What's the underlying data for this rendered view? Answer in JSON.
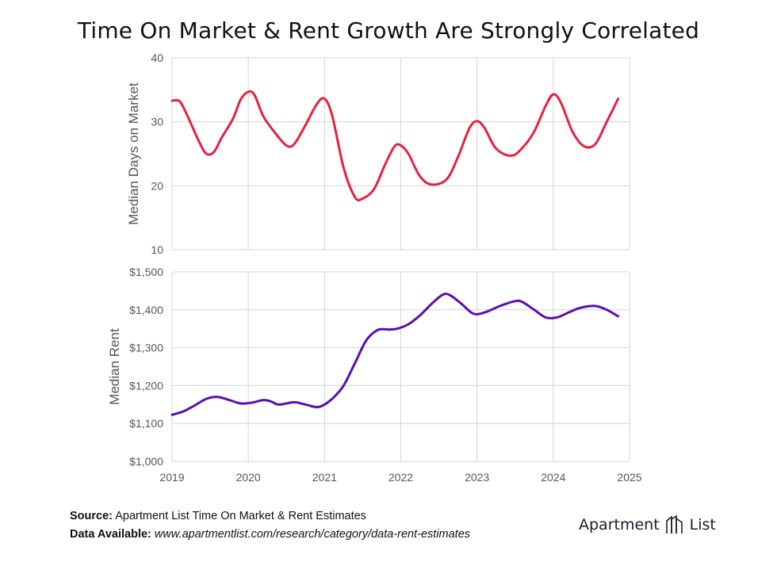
{
  "title": "Time On Market & Rent Growth Are Strongly Correlated",
  "chart_data": [
    {
      "type": "line",
      "name": "dom",
      "ylabel": "Median Days on Market",
      "ylim": [
        10,
        40
      ],
      "yticks": [
        10,
        20,
        30,
        40
      ],
      "ytick_labels": [
        "10",
        "20",
        "30",
        "40"
      ],
      "xlim": [
        2019,
        2025
      ],
      "color": "#e8213f",
      "series": [
        {
          "name": "Median Days on Market",
          "x": [
            2019.0,
            2019.1,
            2019.2,
            2019.35,
            2019.45,
            2019.55,
            2019.65,
            2019.8,
            2019.9,
            2020.0,
            2020.08,
            2020.2,
            2020.35,
            2020.5,
            2020.6,
            2020.75,
            2020.9,
            2021.0,
            2021.1,
            2021.25,
            2021.4,
            2021.5,
            2021.65,
            2021.8,
            2021.92,
            2022.0,
            2022.1,
            2022.25,
            2022.4,
            2022.6,
            2022.75,
            2022.9,
            2023.0,
            2023.1,
            2023.25,
            2023.45,
            2023.6,
            2023.75,
            2023.9,
            2024.0,
            2024.1,
            2024.25,
            2024.4,
            2024.55,
            2024.7,
            2024.85
          ],
          "values": [
            33.3,
            33.2,
            31.0,
            27.0,
            25.0,
            25.3,
            27.5,
            30.5,
            33.5,
            34.7,
            34.2,
            30.8,
            28.3,
            26.3,
            26.5,
            29.5,
            32.8,
            33.6,
            31.0,
            22.8,
            18.2,
            18.0,
            19.5,
            23.5,
            26.2,
            26.3,
            25.0,
            21.5,
            20.2,
            21.0,
            24.5,
            29.0,
            30.1,
            29.0,
            25.8,
            24.7,
            26.0,
            28.5,
            32.5,
            34.3,
            33.0,
            28.5,
            26.2,
            26.5,
            30.0,
            33.6
          ]
        }
      ]
    },
    {
      "type": "line",
      "name": "rent",
      "ylabel": "Median Rent",
      "ylim": [
        1000,
        1500
      ],
      "yticks": [
        1000,
        1100,
        1200,
        1300,
        1400,
        1500
      ],
      "ytick_labels": [
        "$1,000",
        "$1,100",
        "$1,200",
        "$1,300",
        "$1,400",
        "$1,500"
      ],
      "xlim": [
        2019,
        2025
      ],
      "xticks": [
        2019,
        2020,
        2021,
        2022,
        2023,
        2024,
        2025
      ],
      "xtick_labels": [
        "2019",
        "2020",
        "2021",
        "2022",
        "2023",
        "2024",
        "2025"
      ],
      "color": "#5a0fb0",
      "series": [
        {
          "name": "Median Rent",
          "x": [
            2019.0,
            2019.15,
            2019.3,
            2019.45,
            2019.6,
            2019.75,
            2019.9,
            2020.05,
            2020.2,
            2020.3,
            2020.4,
            2020.6,
            2020.75,
            2020.9,
            2021.0,
            2021.1,
            2021.25,
            2021.4,
            2021.55,
            2021.7,
            2021.85,
            2021.95,
            2022.1,
            2022.25,
            2022.4,
            2022.55,
            2022.65,
            2022.8,
            2022.95,
            2023.1,
            2023.3,
            2023.5,
            2023.6,
            2023.75,
            2023.9,
            2024.05,
            2024.2,
            2024.35,
            2024.55,
            2024.7,
            2024.85
          ],
          "values": [
            1123,
            1132,
            1148,
            1165,
            1170,
            1162,
            1153,
            1155,
            1162,
            1158,
            1150,
            1156,
            1150,
            1143,
            1150,
            1165,
            1200,
            1260,
            1320,
            1347,
            1348,
            1350,
            1362,
            1385,
            1415,
            1440,
            1438,
            1415,
            1390,
            1393,
            1410,
            1423,
            1420,
            1400,
            1380,
            1380,
            1393,
            1405,
            1410,
            1400,
            1383
          ]
        }
      ]
    }
  ],
  "footer": {
    "source_label": "Source:",
    "source_text": "Apartment List Time On Market & Rent Estimates",
    "data_label": "Data Available:",
    "data_text": "www.apartmentlist.com/research/category/data-rent-estimates"
  },
  "logo": {
    "left": "Apartment",
    "right": "List"
  }
}
